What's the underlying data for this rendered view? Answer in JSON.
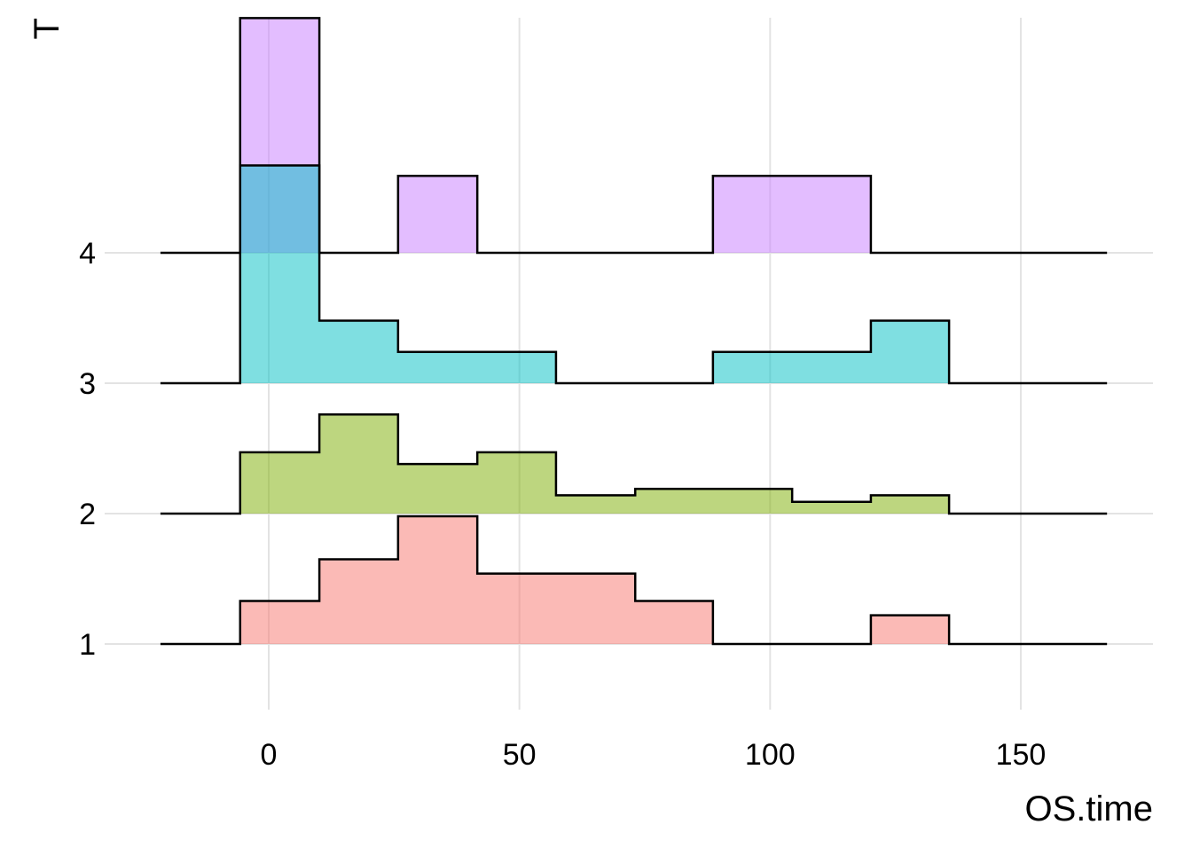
{
  "chart_data": {
    "type": "ridgeline-histogram",
    "title": "",
    "xlabel": "OS.time",
    "ylabel": "T",
    "xlim": [
      -25,
      177
    ],
    "x_ticks": [
      0,
      50,
      100,
      150
    ],
    "x_tick_labels": [
      "0",
      "50",
      "100",
      "150"
    ],
    "categories": [
      "1",
      "2",
      "3",
      "4"
    ],
    "bin_edges": [
      -21.6,
      -5.7,
      10.1,
      25.8,
      41.6,
      57.3,
      73.1,
      88.6,
      104.4,
      120.1,
      135.7,
      151.4,
      167.2
    ],
    "grid": true,
    "legend": "none",
    "series": [
      {
        "name": "1",
        "color": "#F8766D",
        "heights": [
          0,
          0.33,
          0.65,
          0.98,
          0.54,
          0.54,
          0.33,
          0,
          0,
          0.22,
          0,
          0
        ]
      },
      {
        "name": "2",
        "color": "#7CAE00",
        "heights": [
          0,
          0.47,
          0.76,
          0.38,
          0.47,
          0.14,
          0.19,
          0.19,
          0.09,
          0.14,
          0,
          0
        ]
      },
      {
        "name": "3",
        "color": "#00BFC4",
        "heights": [
          0,
          1.67,
          0.48,
          0.24,
          0.24,
          0,
          0,
          0.24,
          0.24,
          0.48,
          0,
          0
        ]
      },
      {
        "name": "4",
        "color": "#C77CFF",
        "heights": [
          0,
          1.8,
          0,
          0.59,
          0,
          0,
          0,
          0.59,
          0.59,
          0,
          0,
          0
        ]
      }
    ]
  }
}
